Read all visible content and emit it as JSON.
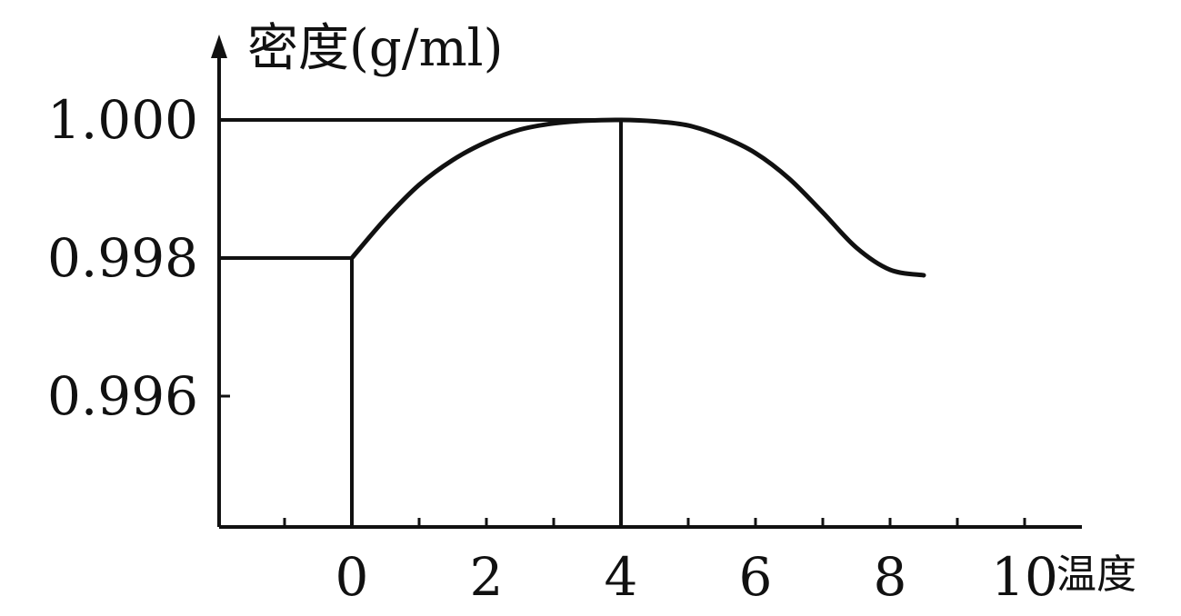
{
  "chart_data": {
    "type": "line",
    "ylabel": "密度(g/ml)",
    "xlabel": "温度",
    "x_ticks": [
      0,
      2,
      4,
      6,
      8,
      10
    ],
    "y_ticks": [
      "0.996",
      "0.998",
      "1.000"
    ],
    "xlim": [
      -2,
      10.5
    ],
    "ylim": [
      0.994,
      1.0006
    ],
    "grid": false,
    "series": [
      {
        "x": [
          0,
          0.5,
          1,
          1.5,
          2,
          2.5,
          3,
          3.5,
          4,
          4.5,
          5,
          5.5,
          6,
          6.5,
          7,
          7.5,
          8,
          8.5
        ],
        "y": [
          0.998,
          0.99857,
          0.99906,
          0.99942,
          0.99968,
          0.99986,
          0.99995,
          0.99999,
          1.0,
          0.99998,
          0.99992,
          0.99976,
          0.99952,
          0.99915,
          0.99866,
          0.99815,
          0.99783,
          0.99775
        ]
      }
    ],
    "reference_lines": [
      {
        "x": 0,
        "y": 0.998
      },
      {
        "x": 4,
        "y": 1.0
      }
    ]
  }
}
